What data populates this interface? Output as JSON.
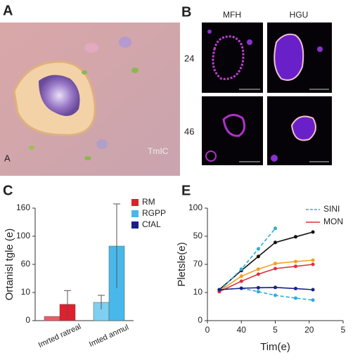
{
  "panels": {
    "a": {
      "label": "A",
      "corner_label": "A",
      "stamp": "TmIC"
    },
    "b": {
      "label": "B",
      "columns": [
        "MFH",
        "HGU"
      ],
      "rows": [
        "24",
        "46"
      ]
    }
  },
  "chart_data": [
    {
      "type": "bar",
      "panel": "C",
      "ylabel": "Ortanisl tgle (e)",
      "categories": [
        "Imrted ratreal",
        "Imted anmul"
      ],
      "category_colors": [
        "#c8202e",
        "#3bb4e0"
      ],
      "series": [
        {
          "color": "#ef5a66",
          "values": [
            0.15,
            null
          ],
          "errors": [
            null,
            null
          ]
        },
        {
          "name": "RM",
          "color": "#e0202e",
          "values": [
            0.58,
            null
          ],
          "errors": [
            0.49,
            null
          ]
        },
        {
          "color": "#7fd0f0",
          "values": [
            null,
            0.65
          ],
          "errors": [
            null,
            0.25
          ]
        },
        {
          "name": "RGPP",
          "color": "#48b8ea",
          "values": [
            null,
            2.65
          ],
          "errors": [
            null,
            1.5
          ]
        },
        {
          "name": "CfAL",
          "color": "#1a1f8a",
          "values": [
            null,
            null
          ],
          "errors": [
            null,
            null
          ]
        }
      ],
      "ylim": [
        0,
        4
      ],
      "yticks": [
        {
          "value": 0,
          "label": "0"
        },
        {
          "value": 1,
          "label": "10"
        },
        {
          "value": 2,
          "label": "60"
        },
        {
          "value": 3,
          "label": "100"
        },
        {
          "value": 4,
          "label": "160"
        }
      ]
    },
    {
      "type": "line",
      "panel": "E",
      "xlabel": "Tim(e)",
      "ylabel": "Pletsle(e)",
      "x": [
        0.35,
        1,
        1.5,
        2,
        2.6,
        3.11
      ],
      "series": [
        {
          "color": "#111111",
          "values": [
            1.1,
            1.78,
            2.28,
            2.78,
            2.98,
            3.15
          ]
        },
        {
          "name": "SINI",
          "color": "#2aaed8",
          "dashed": true,
          "values": [
            1.05,
            1.83,
            2.55,
            3.28,
            null,
            null
          ]
        },
        {
          "color": "#2aaed8",
          "dashed": true,
          "values": [
            1.1,
            1.15,
            1.03,
            0.9,
            0.8,
            0.73
          ]
        },
        {
          "color": "#f0a020",
          "values": [
            1.05,
            1.58,
            1.83,
            2.03,
            2.1,
            2.15
          ]
        },
        {
          "name": "MON",
          "color": "#e03040",
          "values": [
            1.03,
            1.4,
            1.65,
            1.85,
            1.93,
            2.0
          ]
        },
        {
          "color": "#1a1f8a",
          "values": [
            1.1,
            1.15,
            1.17,
            1.18,
            1.14,
            1.1
          ]
        }
      ],
      "xlim": [
        0,
        4
      ],
      "xticks": [
        {
          "value": 0,
          "label": "0"
        },
        {
          "value": 1,
          "label": "40"
        },
        {
          "value": 2,
          "label": "5"
        },
        {
          "value": 3,
          "label": "20"
        },
        {
          "value": 4,
          "label": "5"
        }
      ],
      "ylim": [
        0,
        4
      ],
      "yticks": [
        {
          "value": 0,
          "label": "0"
        },
        {
          "value": 1,
          "label": "10"
        },
        {
          "value": 2,
          "label": "70"
        },
        {
          "value": 3,
          "label": "50"
        },
        {
          "value": 4,
          "label": "100"
        }
      ]
    }
  ]
}
